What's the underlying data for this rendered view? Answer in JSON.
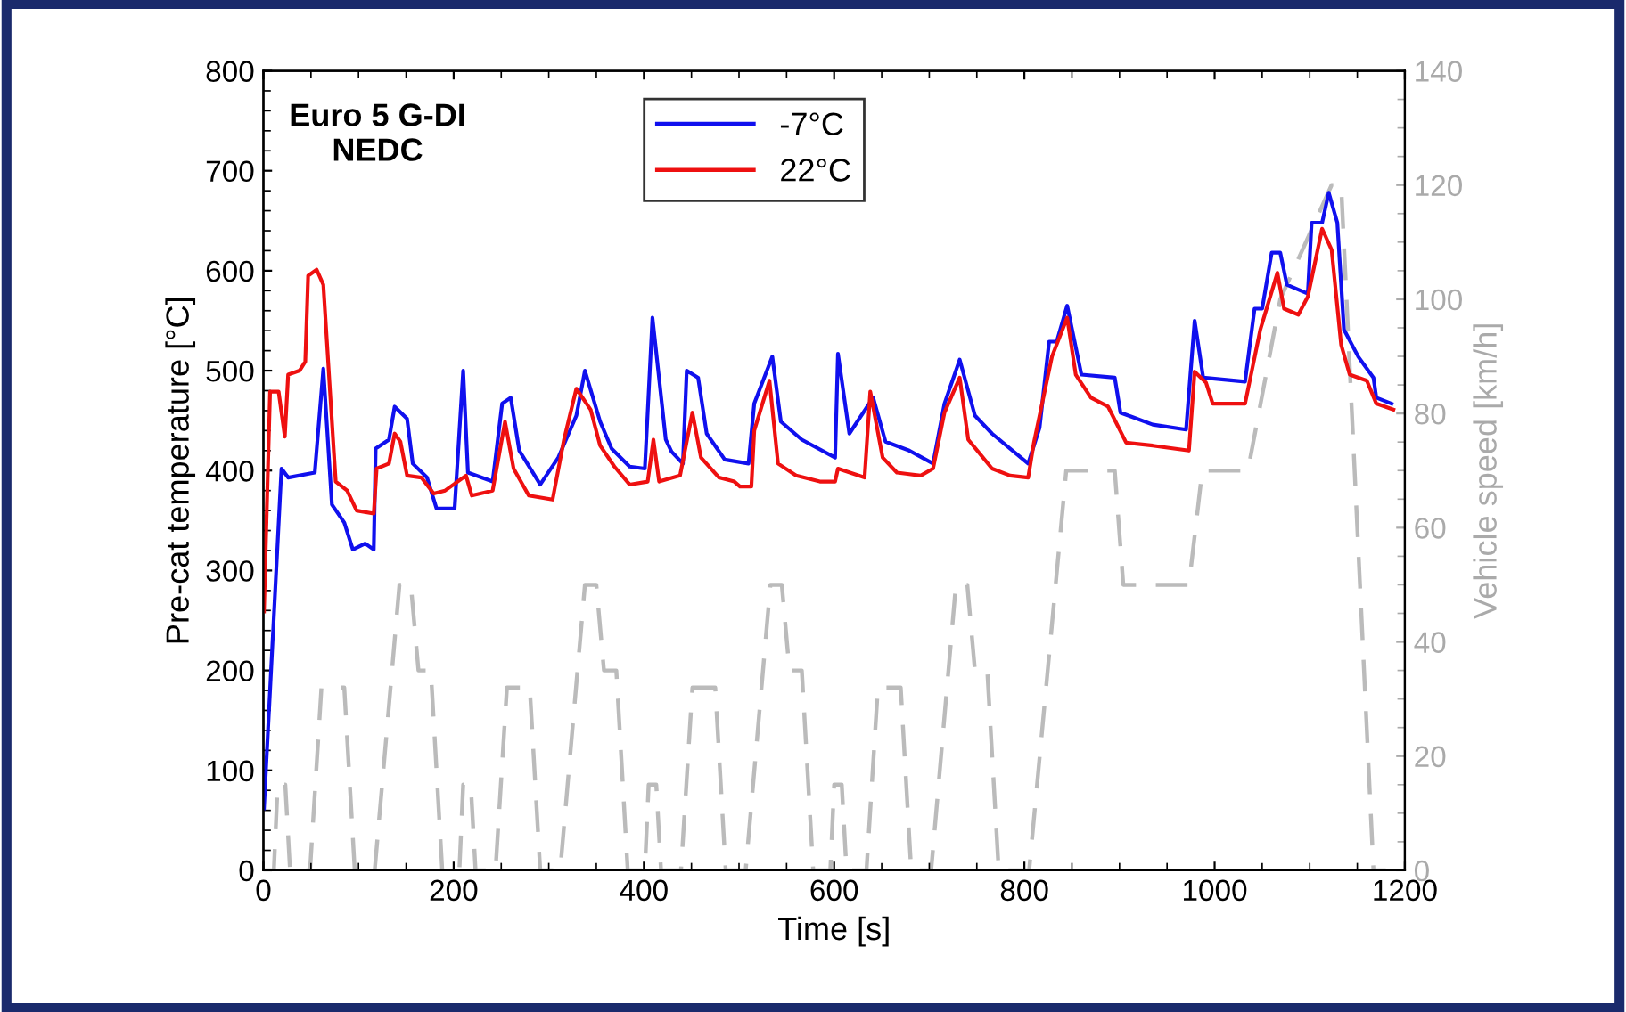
{
  "chart_data": {
    "type": "line",
    "xlabel": "Time [s]",
    "ylabel": "Pre-cat temperature [°C]",
    "y2label": "Vehicle speed [km/h]",
    "annotations": [
      "Euro 5 G-DI\nNEDC"
    ],
    "xlim": [
      0,
      1200
    ],
    "xticks": [
      0,
      200,
      400,
      600,
      800,
      1000,
      1200
    ],
    "ylim": [
      0,
      800
    ],
    "yticks": [
      0,
      100,
      200,
      300,
      400,
      500,
      600,
      700,
      800
    ],
    "y2lim": [
      0,
      140
    ],
    "y2ticks": [
      0,
      20,
      40,
      60,
      80,
      100,
      120,
      140
    ],
    "legend": "top",
    "grid": false,
    "line_style": "solid",
    "series": [
      {
        "name": "-7°C",
        "color": "#1010ee",
        "x": [
          0.6,
          19,
          26,
          54,
          63,
          72,
          85,
          94,
          107,
          116,
          118,
          132,
          138,
          151,
          157,
          172,
          182,
          201,
          210,
          215,
          241,
          251,
          260,
          269,
          291,
          310,
          329,
          338,
          354,
          366,
          385,
          401,
          409,
          423,
          429,
          441,
          445,
          457,
          466,
          485,
          510,
          516,
          535,
          544,
          566,
          601,
          604,
          616,
          641,
          654,
          679,
          704,
          716,
          732,
          748,
          766,
          804,
          816,
          826,
          834,
          845,
          860,
          895,
          901,
          935,
          970,
          979,
          988,
          1032,
          1042,
          1050,
          1060,
          1069,
          1076,
          1098,
          1102,
          1113,
          1120,
          1129,
          1136,
          1151,
          1167,
          1170,
          1186
        ],
        "values": [
          62,
          402,
          393,
          398,
          502,
          366,
          348,
          321,
          327,
          321,
          422,
          431,
          464,
          452,
          407,
          393,
          362,
          362,
          500,
          398,
          389,
          467,
          473,
          420,
          386,
          413,
          455,
          500,
          449,
          422,
          404,
          402,
          553,
          431,
          419,
          407,
          500,
          493,
          437,
          411,
          407,
          467,
          514,
          449,
          431,
          413,
          517,
          437,
          473,
          429,
          420,
          407,
          467,
          511,
          455,
          437,
          407,
          443,
          529,
          529,
          565,
          496,
          493,
          458,
          446,
          441,
          550,
          493,
          489,
          562,
          562,
          618,
          618,
          586,
          577,
          648,
          648,
          678,
          648,
          541,
          514,
          493,
          473,
          467
        ]
      },
      {
        "name": "22°C",
        "color": "#ee1010",
        "x": [
          0.6,
          7,
          16,
          22.5,
          26,
          38,
          44,
          47,
          56,
          63,
          76,
          88,
          98,
          116,
          119,
          132,
          138,
          144,
          151,
          166,
          179,
          191,
          213,
          219,
          241,
          254,
          263,
          279,
          304,
          316,
          329,
          344,
          354,
          369,
          385,
          404,
          410,
          416,
          438,
          451,
          460,
          479,
          495,
          501,
          513,
          516,
          532,
          541,
          560,
          585,
          601,
          604,
          632,
          638,
          651,
          666,
          691,
          704,
          716,
          732,
          741,
          766,
          785,
          804,
          810,
          829,
          845,
          854,
          870,
          888,
          907,
          935,
          973,
          979,
          991,
          998,
          1032,
          1048,
          1066,
          1073,
          1088,
          1098,
          1113,
          1123,
          1133,
          1142,
          1160,
          1170,
          1188
        ],
        "values": [
          259,
          479,
          479,
          434,
          496,
          500,
          509,
          595,
          601,
          586,
          389,
          380,
          360,
          357,
          402,
          407,
          437,
          429,
          395,
          393,
          377,
          380,
          395,
          375,
          380,
          449,
          402,
          375,
          371,
          431,
          482,
          461,
          425,
          404,
          386,
          389,
          431,
          389,
          395,
          458,
          413,
          393,
          389,
          384,
          384,
          440,
          490,
          407,
          395,
          389,
          389,
          402,
          393,
          479,
          413,
          398,
          395,
          402,
          458,
          493,
          431,
          402,
          395,
          393,
          428,
          514,
          553,
          496,
          473,
          464,
          428,
          425,
          420,
          499,
          488,
          467,
          467,
          541,
          598,
          562,
          556,
          574,
          642,
          621,
          526,
          496,
          490,
          467,
          461
        ]
      },
      {
        "color": "#bbbbbb",
        "axis": "y2",
        "line_style": "dashed",
        "x": [
          0,
          11,
          15,
          23,
          28,
          49,
          61,
          85,
          96,
          117,
          143,
          155,
          163,
          176,
          188,
          195,
          206,
          210,
          218,
          223,
          244,
          256,
          280,
          291,
          312,
          338,
          350,
          358,
          371,
          383,
          390,
          401,
          405,
          413,
          418,
          439,
          451,
          475,
          486,
          507,
          533,
          545,
          553,
          566,
          578,
          585,
          596,
          600,
          608,
          613,
          634,
          646,
          670,
          681,
          702,
          728,
          740,
          748,
          761,
          773,
          780,
          805,
          844,
          895,
          904,
          973,
          987,
          1035,
          1069,
          1123,
          1133,
          1167,
          1180
        ],
        "values": [
          0,
          0,
          15,
          15,
          0,
          0,
          32,
          32,
          0,
          0,
          50,
          50,
          35,
          35,
          0,
          0,
          0,
          15,
          15,
          0,
          0,
          32,
          32,
          0,
          0,
          50,
          50,
          35,
          35,
          0,
          0,
          0,
          15,
          15,
          0,
          0,
          32,
          32,
          0,
          0,
          50,
          50,
          35,
          35,
          0,
          0,
          0,
          15,
          15,
          0,
          0,
          32,
          32,
          0,
          0,
          50,
          50,
          35,
          35,
          0,
          0,
          0,
          70,
          70,
          50,
          50,
          70,
          70,
          100,
          120,
          120,
          0,
          0
        ]
      }
    ]
  }
}
